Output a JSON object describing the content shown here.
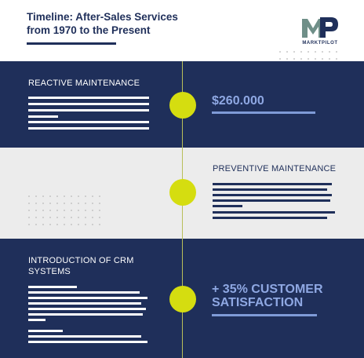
{
  "header": {
    "title_line1": "Timeline: After-Sales Services",
    "title_line2": "from 1970 to the Present",
    "logo_text": "MARKTPILOT",
    "logo_mark": "MP"
  },
  "sections": {
    "reactive": {
      "title": "REACTIVE MAINTENANCE",
      "stat": "$260.000"
    },
    "preventive": {
      "title": "PREVENTIVE MAINTENANCE"
    },
    "crm": {
      "title_line1": "INTRODUCTION OF CRM",
      "title_line2": "SYSTEMS",
      "stat_line1": "+ 35% CUSTOMER",
      "stat_line2": "SATISFACTION"
    }
  },
  "colors": {
    "navy": "#1f2f5a",
    "grey": "#ececec",
    "accent_yellow": "#d5dd10",
    "stat_blue": "#8fa8e3",
    "bar_blue": "#7f9bd7"
  }
}
